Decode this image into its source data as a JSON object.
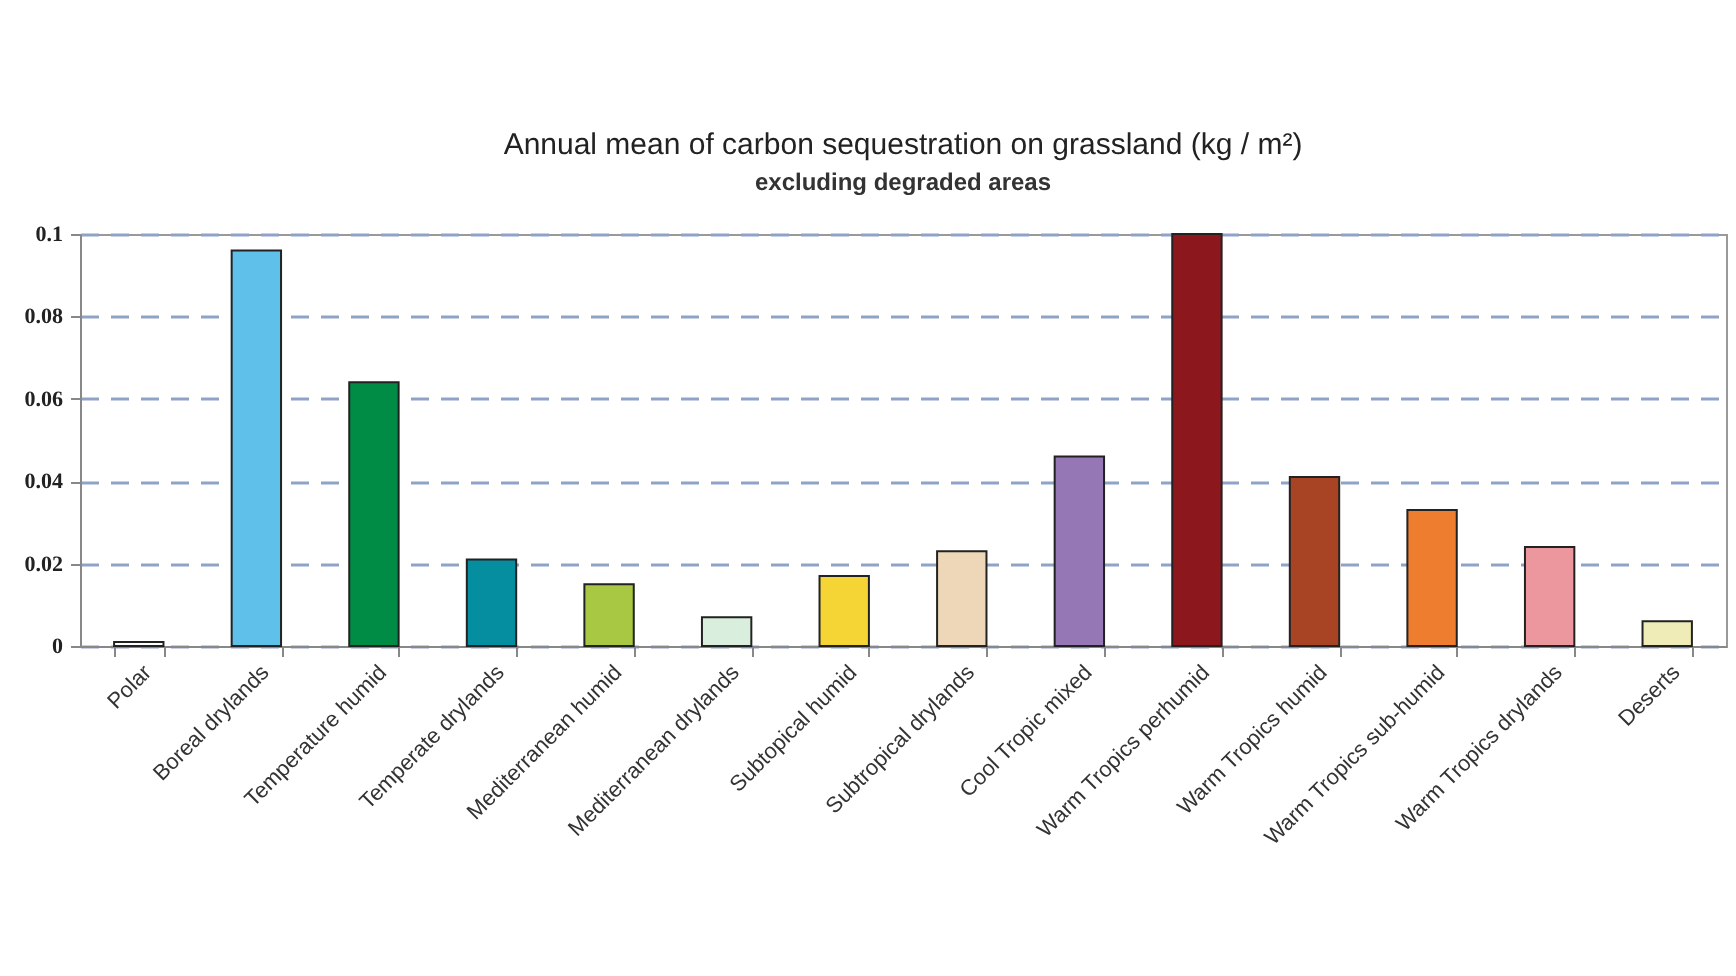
{
  "chart_data": {
    "type": "bar",
    "title": "Annual mean of carbon sequestration on grassland (kg / m²)",
    "subtitle": "excluding  degraded areas",
    "categories": [
      "Polar",
      "Boreal drylands",
      "Temperature humid",
      "Temperate drylands",
      "Mediterranean humid",
      "Mediterranean drylands",
      "Subtopical humid",
      "Subtropical drylands",
      "Cool Tropic mixed",
      "Warm Tropics perhumid",
      "Warm Tropics humid",
      "Warm Tropics sub-humid",
      "Warm Tropics drylands",
      "Deserts"
    ],
    "values": [
      0.001,
      0.096,
      0.064,
      0.021,
      0.015,
      0.007,
      0.017,
      0.023,
      0.046,
      0.1,
      0.041,
      0.033,
      0.024,
      0.006
    ],
    "colors": [
      "#ffffff",
      "#5fc0ea",
      "#008c45",
      "#058ea0",
      "#a8c844",
      "#d9eedc",
      "#f5d535",
      "#eed7b8",
      "#9477b4",
      "#8c181d",
      "#a84423",
      "#ee7d30",
      "#ec979e",
      "#f0ecb8"
    ],
    "ylim": [
      0,
      0.1
    ],
    "yticks": [
      0,
      0.02,
      0.04,
      0.06,
      0.08,
      0.1
    ],
    "grid": "y"
  }
}
